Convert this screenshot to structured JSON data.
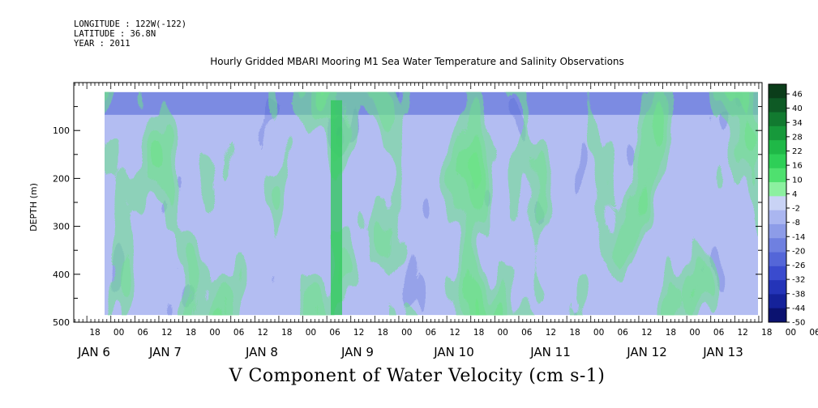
{
  "meta": {
    "longitude": "LONGITUDE : 122W(-122)",
    "latitude": "LATITUDE : 36.8N",
    "year": "YEAR : 2011"
  },
  "chart_data": {
    "type": "heatmap",
    "title": "Hourly Gridded MBARI Mooring M1 Sea Water Temperature and Salinity Observations",
    "xlabel": "V Component of Water Velocity (cm s-1)",
    "ylabel": "DEPTH (m)",
    "ylim": [
      500,
      0
    ],
    "yticks": [
      100,
      200,
      300,
      400,
      500
    ],
    "data_depth_range": [
      20,
      485
    ],
    "x_hour_labels": [
      "18",
      "00",
      "06",
      "12",
      "18",
      "00",
      "06",
      "12",
      "18",
      "00",
      "06",
      "12",
      "18",
      "00",
      "06",
      "12",
      "18",
      "00",
      "06",
      "12",
      "18",
      "00",
      "06",
      "12",
      "18",
      "00",
      "06",
      "12",
      "18",
      "00",
      "06",
      "12"
    ],
    "x_day_labels": [
      "JAN  6",
      "JAN  7",
      "JAN  8",
      "JAN  9",
      "JAN 10",
      "JAN 11",
      "JAN 12",
      "JAN 13"
    ],
    "colorbar": {
      "labels": [
        "46",
        "40",
        "34",
        "28",
        "22",
        "16",
        "10",
        "4",
        "-2",
        "-8",
        "-14",
        "-20",
        "-26",
        "-32",
        "-38",
        "-44",
        "-50"
      ],
      "colors": [
        "#0b3d1a",
        "#0e5a25",
        "#127a30",
        "#17993b",
        "#1fb847",
        "#2ecf57",
        "#4fe06f",
        "#8cf0a0",
        "#c9d3f5",
        "#aab6f0",
        "#8d9ce8",
        "#6f80e0",
        "#5466d8",
        "#3a4bce",
        "#2434b8",
        "#15229a",
        "#0b1270"
      ]
    },
    "grid": false,
    "legend": "right"
  }
}
